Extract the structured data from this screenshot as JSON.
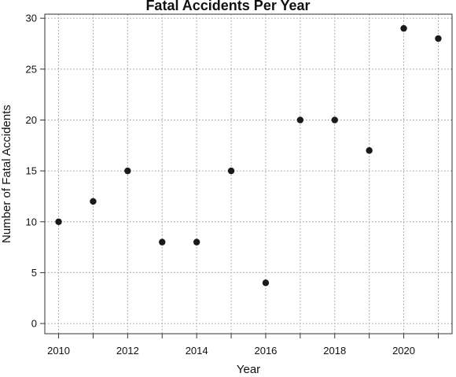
{
  "chart_data": {
    "type": "scatter",
    "title": "Fatal Accidents Per Year",
    "xlabel": "Year",
    "ylabel": "Number of Fatal Accidents",
    "x": [
      2010,
      2011,
      2012,
      2013,
      2014,
      2015,
      2016,
      2017,
      2018,
      2019,
      2020,
      2021
    ],
    "y": [
      10,
      12,
      15,
      8,
      8,
      15,
      4,
      20,
      20,
      17,
      29,
      28
    ],
    "xlim": [
      2009.6,
      2021.4
    ],
    "ylim": [
      -1,
      30.4
    ],
    "xticks": [
      "2010",
      "2012",
      "2014",
      "2016",
      "2018",
      "2020"
    ],
    "yticks": [
      "0",
      "5",
      "10",
      "15",
      "20",
      "25",
      "30"
    ],
    "grid": true,
    "marker_color": "#1a1a1a"
  }
}
